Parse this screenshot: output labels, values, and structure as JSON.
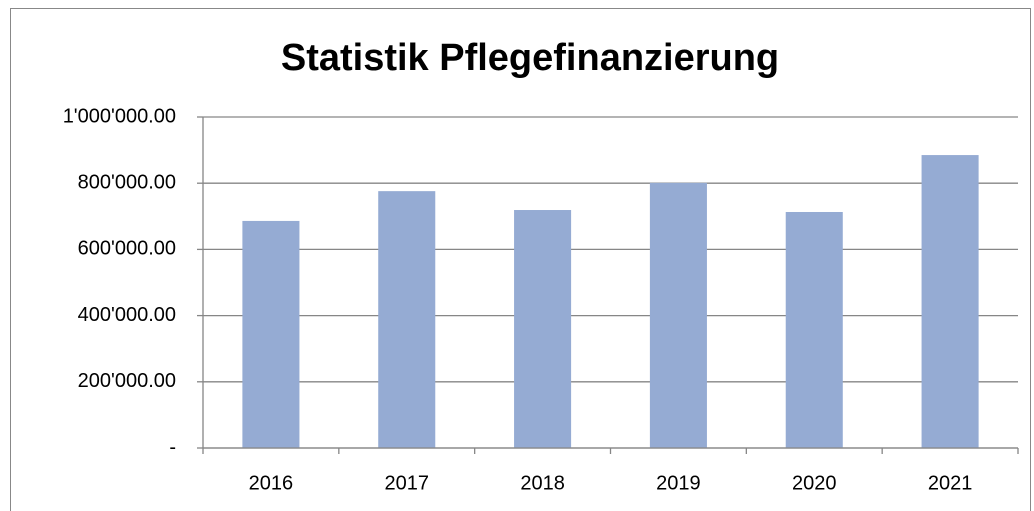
{
  "chart_data": {
    "type": "bar",
    "title": "Statistik Pflegefinanzierung",
    "categories": [
      "2016",
      "2017",
      "2018",
      "2019",
      "2020",
      "2021"
    ],
    "values": [
      686000,
      776000,
      719000,
      801000,
      713000,
      885000
    ],
    "color": "#95abd3",
    "ylim": [
      0,
      1000000
    ],
    "yticks": [
      {
        "value": 0,
        "label": "-"
      },
      {
        "value": 200000,
        "label": "200'000.00"
      },
      {
        "value": 400000,
        "label": "400'000.00"
      },
      {
        "value": 600000,
        "label": "600'000.00"
      },
      {
        "value": 800000,
        "label": "800'000.00"
      },
      {
        "value": 1000000,
        "label": "1'000'000.00"
      }
    ],
    "grid": true
  }
}
